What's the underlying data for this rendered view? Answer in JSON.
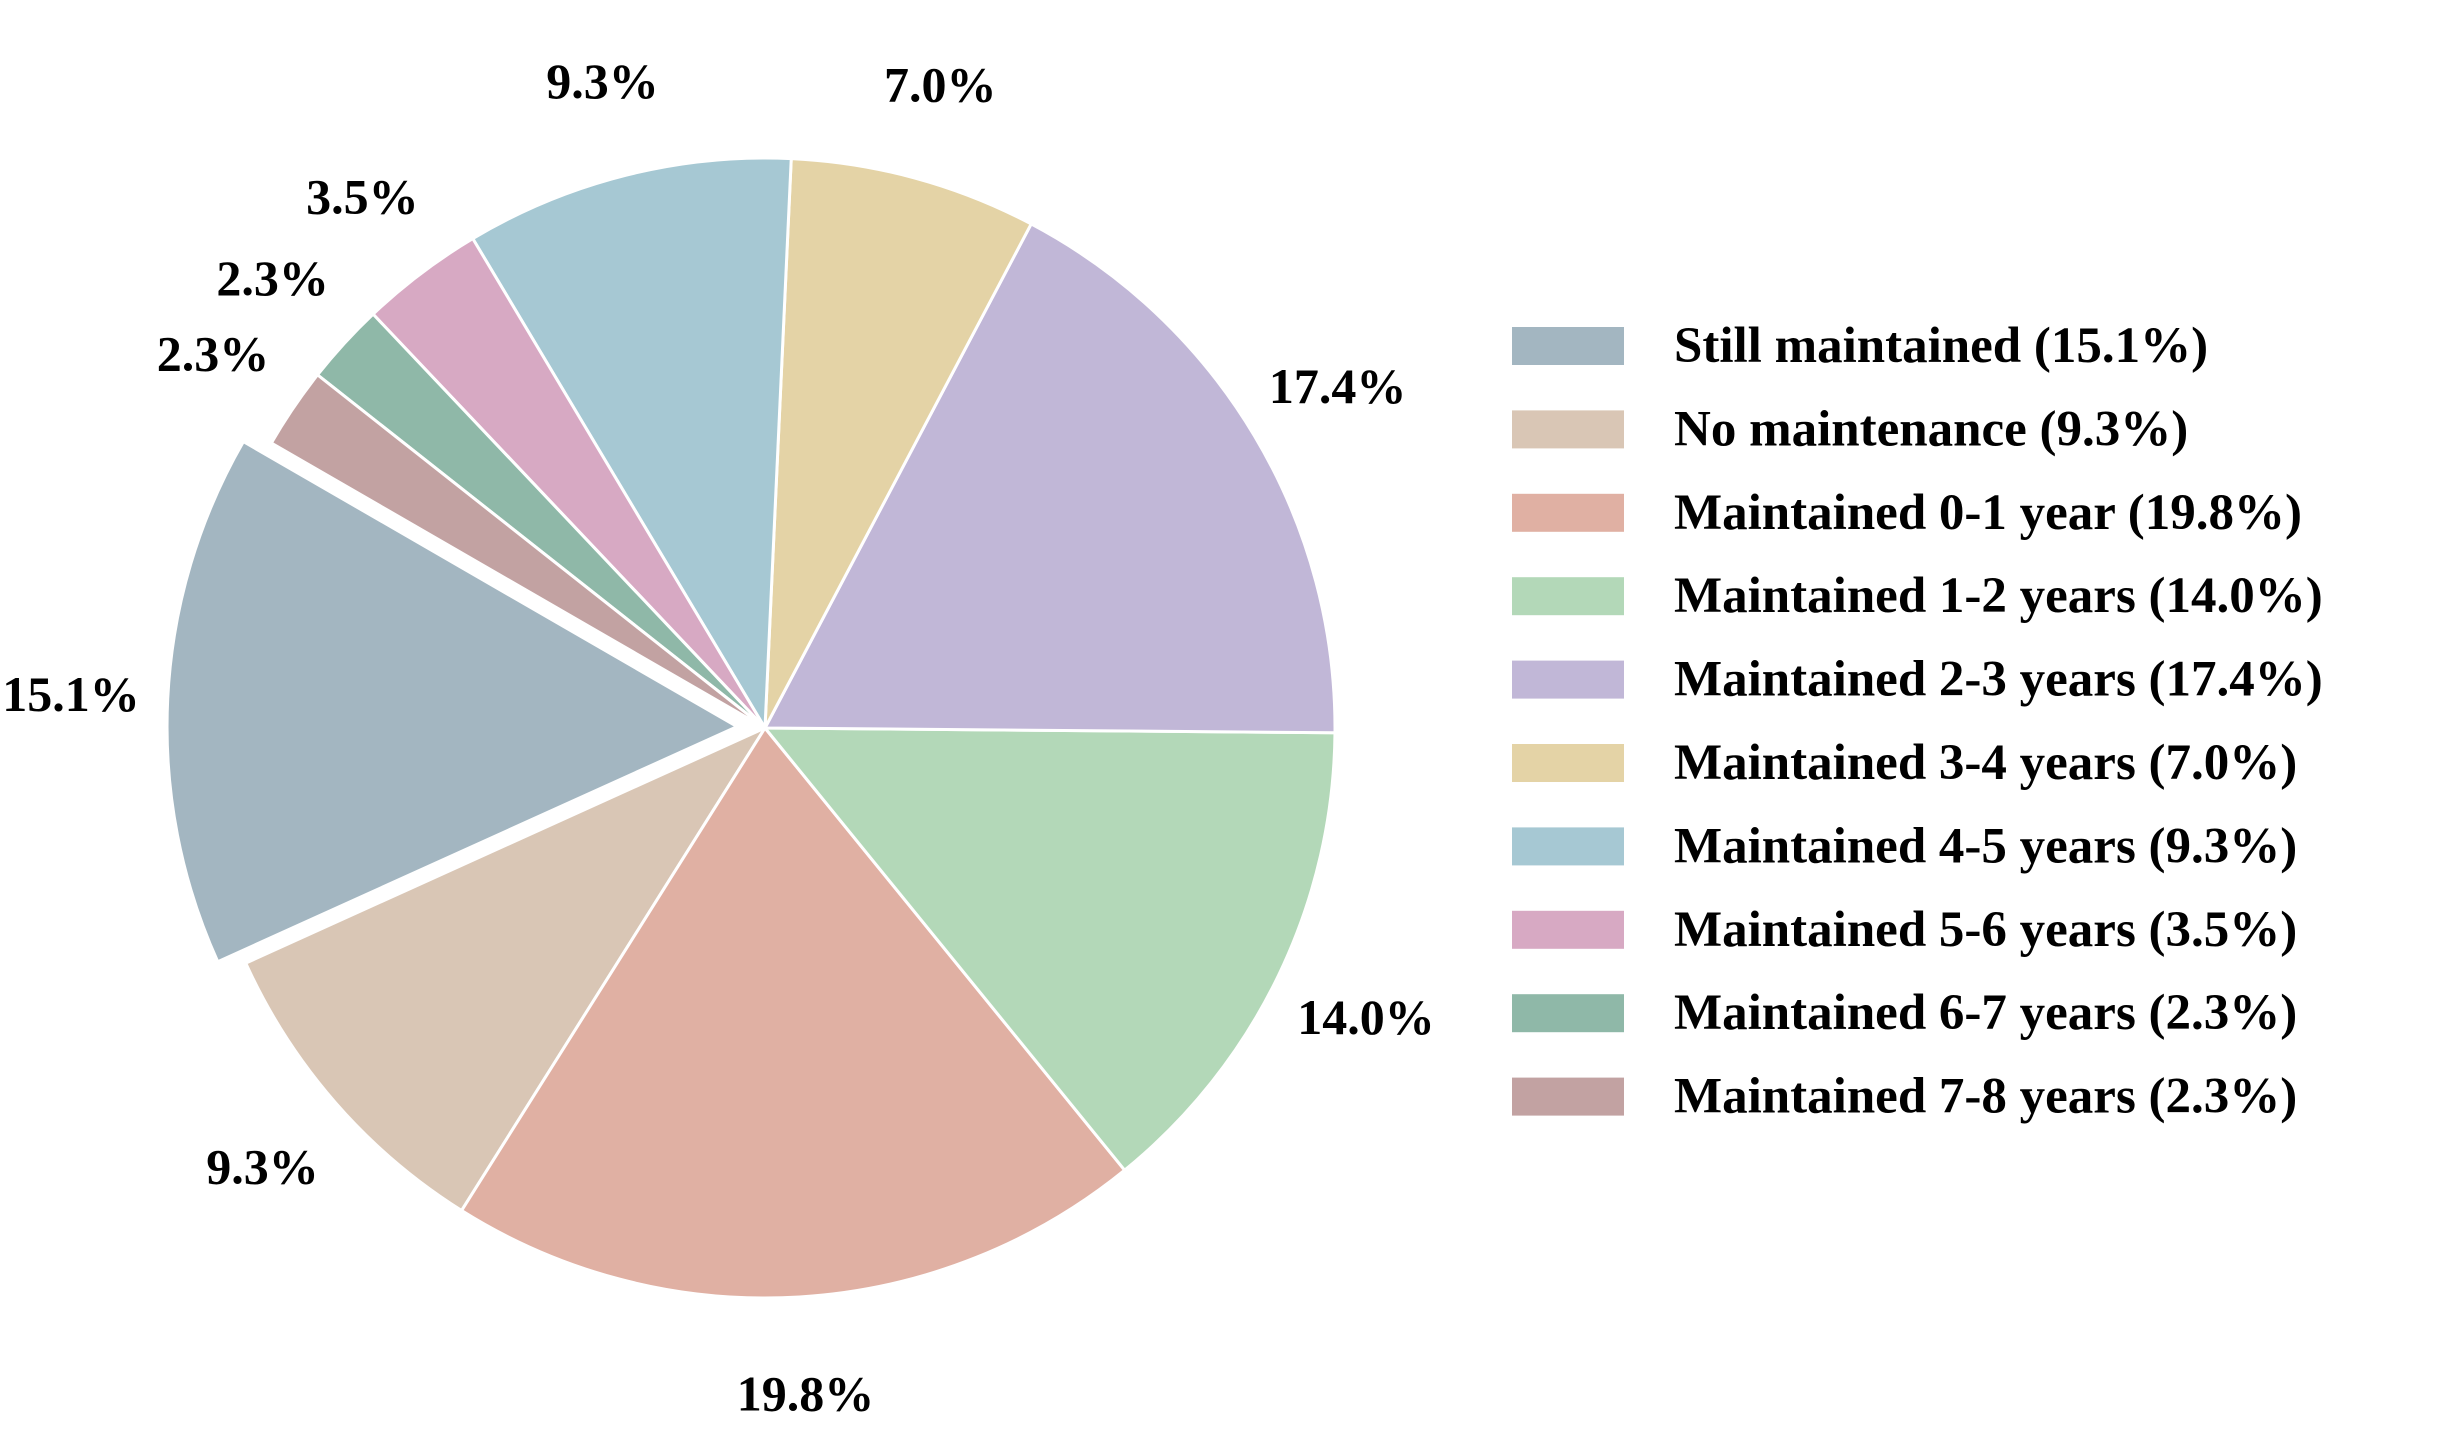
{
  "chart_data": {
    "type": "pie",
    "start_angle_deg": 150,
    "direction": "counterclockwise",
    "exploded_slice": "Still maintained",
    "legend_position": "right",
    "slices": [
      {
        "label": "Still maintained",
        "value": 15.1,
        "pct_label": "15.1%",
        "legend_label": "Still maintained (15.1%)",
        "color": "#a3b6c1"
      },
      {
        "label": "No maintenance",
        "value": 9.3,
        "pct_label": "9.3%",
        "legend_label": "No maintenance (9.3%)",
        "color": "#d9c6b5"
      },
      {
        "label": "Maintained 0-1 year",
        "value": 19.8,
        "pct_label": "19.8%",
        "legend_label": "Maintained 0-1 year (19.8%)",
        "color": "#e0b0a3"
      },
      {
        "label": "Maintained 1-2 years",
        "value": 14.0,
        "pct_label": "14.0%",
        "legend_label": "Maintained 1-2 years (14.0%)",
        "color": "#b3d8b8"
      },
      {
        "label": "Maintained 2-3 years",
        "value": 17.4,
        "pct_label": "17.4%",
        "legend_label": "Maintained 2-3 years (17.4%)",
        "color": "#c1b7d7"
      },
      {
        "label": "Maintained 3-4 years",
        "value": 7.0,
        "pct_label": "7.0%",
        "legend_label": "Maintained 3-4 years (7.0%)",
        "color": "#e4d3a6"
      },
      {
        "label": "Maintained 4-5 years",
        "value": 9.3,
        "pct_label": "9.3%",
        "legend_label": "Maintained 4-5 years (9.3%)",
        "color": "#a6c8d3"
      },
      {
        "label": "Maintained 5-6 years",
        "value": 3.5,
        "pct_label": "3.5%",
        "legend_label": "Maintained 5-6 years (3.5%)",
        "color": "#d7a9c3"
      },
      {
        "label": "Maintained 6-7 years",
        "value": 2.3,
        "pct_label": "2.3%",
        "legend_label": "Maintained 6-7 years (2.3%)",
        "color": "#8fb8a8"
      },
      {
        "label": "Maintained 7-8 years",
        "value": 2.3,
        "pct_label": "2.3%",
        "legend_label": "Maintained 7-8 years (2.3%)",
        "color": "#c2a2a2"
      }
    ]
  }
}
